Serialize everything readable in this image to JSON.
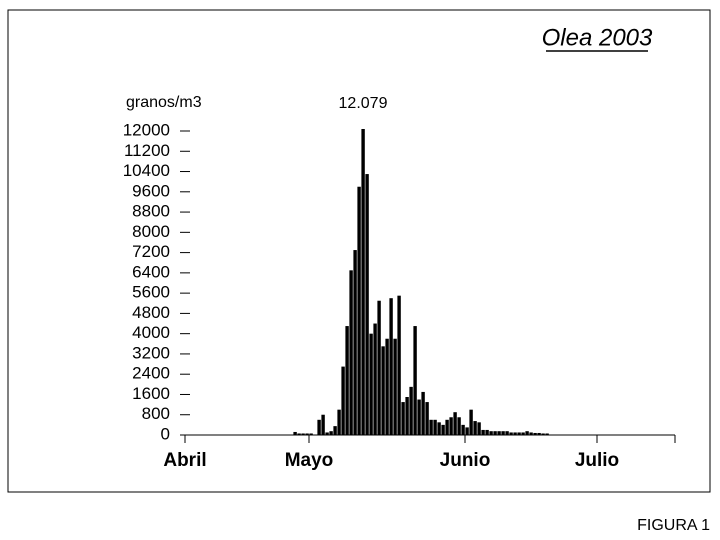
{
  "chart_data": {
    "type": "bar",
    "title": "Olea 2003",
    "y_label": "granos/m3",
    "footer": "FIGURA 1",
    "categories": [
      "Abril",
      null,
      null,
      null,
      null,
      null,
      null,
      null,
      null,
      null,
      null,
      null,
      null,
      null,
      null,
      null,
      null,
      null,
      null,
      null,
      null,
      null,
      null,
      null,
      null,
      null,
      null,
      null,
      null,
      null,
      null,
      "Mayo",
      null,
      null,
      null,
      null,
      null,
      null,
      null,
      null,
      null,
      null,
      null,
      null,
      null,
      null,
      null,
      null,
      null,
      null,
      null,
      null,
      null,
      null,
      null,
      null,
      null,
      null,
      null,
      null,
      null,
      null,
      null,
      null,
      null,
      null,
      null,
      null,
      null,
      null,
      "Junio",
      null,
      null,
      null,
      null,
      null,
      null,
      null,
      null,
      null,
      null,
      null,
      null,
      null,
      null,
      null,
      null,
      null,
      null,
      null,
      null,
      null,
      null,
      null,
      null,
      null,
      null,
      null,
      null,
      null,
      null,
      null,
      null,
      "Julio",
      null,
      null,
      null,
      null,
      null,
      null,
      null,
      null,
      null,
      null,
      null,
      null,
      null,
      null,
      null,
      null,
      null,
      null
    ],
    "values": [
      0,
      0,
      0,
      0,
      0,
      0,
      0,
      0,
      0,
      0,
      0,
      0,
      0,
      0,
      0,
      0,
      0,
      0,
      0,
      0,
      0,
      0,
      0,
      0,
      0,
      0,
      0,
      120,
      60,
      60,
      60,
      60,
      0,
      600,
      800,
      100,
      150,
      350,
      1000,
      2700,
      4300,
      6500,
      7300,
      9800,
      12079,
      10300,
      4000,
      4400,
      5300,
      3500,
      3800,
      5400,
      3800,
      5500,
      1300,
      1500,
      1900,
      4300,
      1400,
      1700,
      1300,
      600,
      600,
      500,
      400,
      600,
      700,
      900,
      700,
      400,
      300,
      1000,
      550,
      500,
      200,
      200,
      150,
      150,
      150,
      150,
      150,
      100,
      100,
      100,
      100,
      150,
      100,
      80,
      80,
      60,
      60,
      0,
      0,
      0,
      0,
      0,
      0,
      0,
      0,
      0,
      0,
      0,
      0,
      0,
      0,
      0,
      0,
      0,
      0,
      0,
      0,
      0,
      0,
      0,
      0,
      0,
      0,
      0,
      0,
      0,
      0,
      0
    ],
    "value_labels": [
      null,
      null,
      null,
      null,
      null,
      null,
      null,
      null,
      null,
      null,
      null,
      null,
      null,
      null,
      null,
      null,
      null,
      null,
      null,
      null,
      null,
      null,
      null,
      null,
      null,
      null,
      null,
      null,
      null,
      null,
      null,
      null,
      null,
      null,
      null,
      null,
      null,
      null,
      null,
      null,
      null,
      null,
      null,
      null,
      "12.079",
      null,
      null,
      null,
      null,
      null,
      null,
      null,
      null,
      null,
      null,
      null,
      null,
      null,
      null,
      null,
      null,
      null,
      null,
      null,
      null,
      null,
      null,
      null,
      null,
      null,
      null,
      null,
      null,
      null,
      null,
      null,
      null,
      null,
      null,
      null,
      null,
      null,
      null,
      null,
      null,
      null,
      null,
      null,
      null,
      null,
      null,
      null,
      null,
      null,
      null,
      null,
      null,
      null,
      null,
      null,
      null,
      null,
      null,
      null,
      null,
      null,
      null,
      null,
      null,
      null,
      null,
      null,
      null,
      null,
      null,
      null,
      null,
      null,
      null,
      null,
      null,
      null
    ],
    "color": "#000000",
    "ylim": [
      0,
      12000
    ],
    "yticks": [
      0,
      800,
      1600,
      2400,
      3200,
      4000,
      4800,
      5600,
      6400,
      7200,
      8000,
      8800,
      9600,
      10400,
      11200,
      12000
    ]
  }
}
